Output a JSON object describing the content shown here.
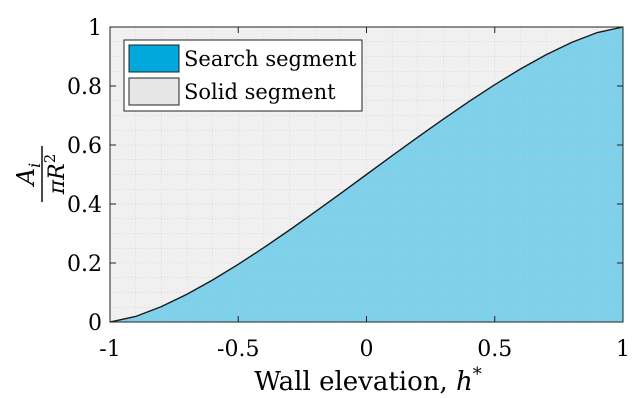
{
  "chart_data": {
    "type": "area",
    "title": "",
    "xlabel": "Wall elevation, h*",
    "xlabel_parts": {
      "text": "Wall elevation, ",
      "var": "h",
      "sup": "*"
    },
    "ylabel": "A_i / (π R^2)",
    "ylabel_parts": {
      "num": "A",
      "num_sub": "i",
      "den_pi": "π",
      "den_var": "R",
      "den_sup": "2"
    },
    "xlim": [
      -1,
      1
    ],
    "ylim": [
      0,
      1
    ],
    "xticks": [
      -1,
      -0.5,
      0,
      0.5,
      1
    ],
    "xtick_labels": [
      "-1",
      "-0.5",
      "0",
      "0.5",
      "1"
    ],
    "yticks": [
      0,
      0.2,
      0.4,
      0.6,
      0.8,
      1
    ],
    "ytick_labels": [
      "0",
      "0.2",
      "0.4",
      "0.6",
      "0.8",
      "1"
    ],
    "grid": true,
    "legend_position": "top-left",
    "series": [
      {
        "name": "Search segment",
        "color": "#7fd0ea",
        "legend_color": "#00a8dc",
        "x": [
          -1,
          -0.9,
          -0.8,
          -0.7,
          -0.6,
          -0.5,
          -0.4,
          -0.3,
          -0.2,
          -0.1,
          0,
          0.1,
          0.2,
          0.3,
          0.4,
          0.5,
          0.6,
          0.7,
          0.8,
          0.9,
          1
        ],
        "y": [
          0,
          0.0187,
          0.052,
          0.094,
          0.1424,
          0.1955,
          0.2523,
          0.3119,
          0.3735,
          0.4364,
          0.5,
          0.5636,
          0.6265,
          0.6881,
          0.7477,
          0.8045,
          0.8576,
          0.906,
          0.948,
          0.9813,
          1
        ]
      },
      {
        "name": "Solid segment",
        "color": "#f0f0f0",
        "legend_color": "#e6e6e6"
      }
    ]
  }
}
